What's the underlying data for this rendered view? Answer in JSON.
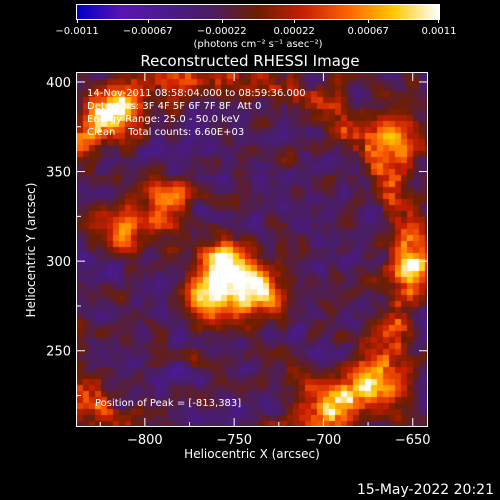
{
  "chart_data": {
    "type": "heatmap",
    "title": "Reconstructed RHESSI Image",
    "xlabel": "Heliocentric X (arcsec)",
    "ylabel": "Heliocentric Y (arcsec)",
    "xlim": [
      -838,
      -642
    ],
    "ylim": [
      208,
      405
    ],
    "x_ticks": [
      -800,
      -750,
      -700,
      -650
    ],
    "x_tick_labels": [
      "−800",
      "−750",
      "−700",
      "−650"
    ],
    "y_ticks": [
      250,
      300,
      350,
      400
    ],
    "y_tick_labels": [
      "250",
      "300",
      "350",
      "400"
    ],
    "colorbar": {
      "ticks": [
        -0.0011,
        -0.00067,
        -0.00022,
        0.00022,
        0.00067,
        0.0011
      ],
      "tick_labels": [
        "−0.0011",
        "−0.00067",
        "−0.00022",
        "0.00022",
        "0.00067",
        "0.0011"
      ],
      "units": "(photons cm⁻² s⁻¹ asec⁻²)",
      "range": [
        -0.0011,
        0.0011
      ],
      "colors": [
        "#0000c8",
        "#5a14b4",
        "#4a1a8c",
        "#4a1e60",
        "#6e1e00",
        "#c81e00",
        "#ff6400",
        "#ffc800",
        "#ffffff"
      ]
    },
    "annotations": {
      "time": "14-Nov-2011 08:58:04.000 to 08:59:36.000",
      "detectors": "Detectors: 3F 4F 5F 6F 7F 8F  Att 0",
      "energy": "Energy Range: 25.0 - 50.0 keV",
      "method": "Clean    Total counts: 6.60E+03",
      "peak": "Position of Peak = [-813,383]"
    },
    "peak_position": [
      -813,
      383
    ],
    "bright_regions": [
      {
        "x": -757,
        "y": 300,
        "level": 1.0
      },
      {
        "x": -740,
        "y": 285,
        "level": 0.92
      },
      {
        "x": -765,
        "y": 280,
        "level": 0.85
      },
      {
        "x": -820,
        "y": 385,
        "level": 0.75
      },
      {
        "x": -790,
        "y": 335,
        "level": 0.65
      },
      {
        "x": -660,
        "y": 370,
        "level": 0.7
      },
      {
        "x": -650,
        "y": 300,
        "level": 0.6
      },
      {
        "x": -670,
        "y": 230,
        "level": 0.7
      },
      {
        "x": -700,
        "y": 225,
        "level": 0.55
      },
      {
        "x": -815,
        "y": 320,
        "level": 0.5
      }
    ]
  },
  "timestamp": "15-May-2022 20:21"
}
